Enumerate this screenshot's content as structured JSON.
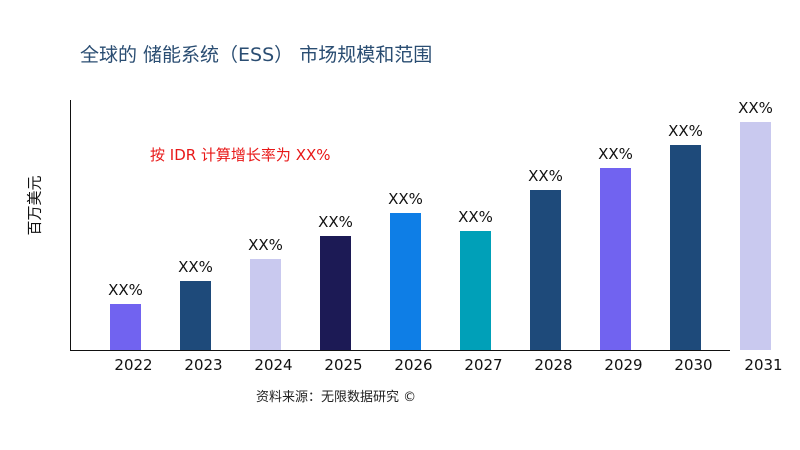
{
  "chart_data": {
    "type": "bar",
    "title": "全球的 储能系统（ESS） 市场规模和范围",
    "ylabel": "百万美元",
    "xlabel": "",
    "annotation": "按 IDR 计算增长率为 XX%",
    "source": "资料来源：无限数据研究 ©",
    "categories": [
      "2022",
      "2023",
      "2024",
      "2025",
      "2026",
      "2027",
      "2028",
      "2029",
      "2030",
      "2031"
    ],
    "values": [
      46,
      69,
      91,
      114,
      137,
      119,
      160,
      182,
      205,
      228
    ],
    "data_labels": [
      "XX%",
      "XX%",
      "XX%",
      "XX%",
      "XX%",
      "XX%",
      "XX%",
      "XX%",
      "XX%",
      "XX%"
    ],
    "colors": [
      "#7163f0",
      "#1e4a7a",
      "#c9c9ef",
      "#1c1a55",
      "#0e7ee6",
      "#00a0b8",
      "#1e4a7a",
      "#7163f0",
      "#1e4a7a",
      "#c9c9ef"
    ],
    "ylim": [
      0,
      250
    ],
    "grid": false,
    "legend": "none"
  }
}
